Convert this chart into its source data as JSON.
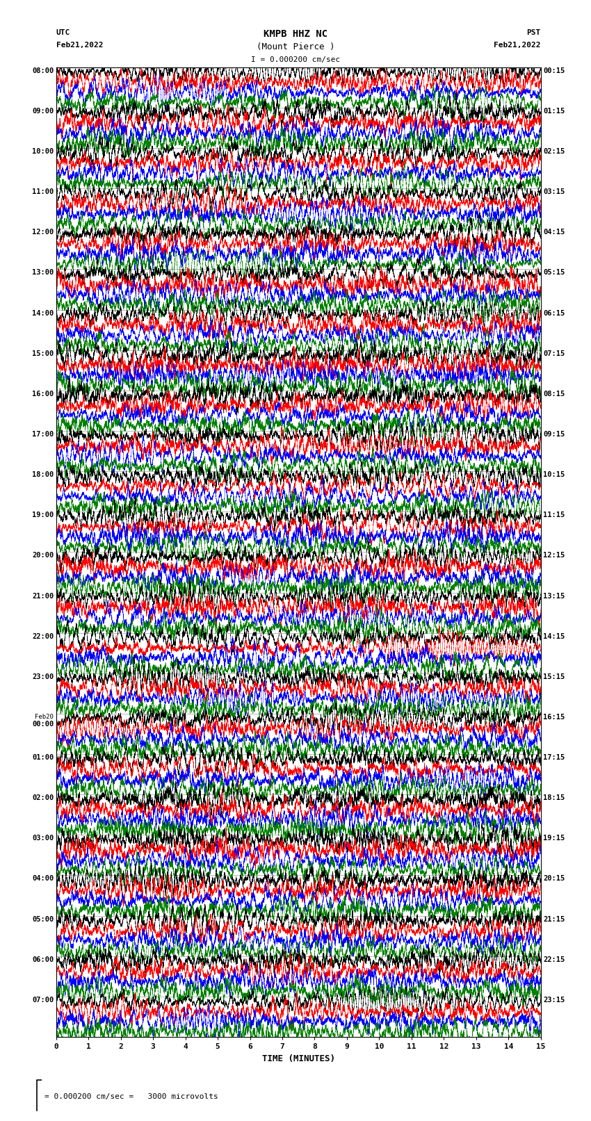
{
  "title_line1": "KMPB HHZ NC",
  "title_line2": "(Mount Pierce )",
  "title_line3": "I = 0.000200 cm/sec",
  "label_utc": "UTC",
  "label_pst": "PST",
  "date_left": "Feb21,2022",
  "date_right": "Feb21,2022",
  "xlabel": "TIME (MINUTES)",
  "scale_label": "= 0.000200 cm/sec =   3000 microvolts",
  "left_times": [
    "08:00",
    "09:00",
    "10:00",
    "11:00",
    "12:00",
    "13:00",
    "14:00",
    "15:00",
    "16:00",
    "17:00",
    "18:00",
    "19:00",
    "20:00",
    "21:00",
    "22:00",
    "23:00",
    "Feb20\n00:00",
    "01:00",
    "02:00",
    "03:00",
    "04:00",
    "05:00",
    "06:00",
    "07:00"
  ],
  "right_times": [
    "00:15",
    "01:15",
    "02:15",
    "03:15",
    "04:15",
    "05:15",
    "06:15",
    "07:15",
    "08:15",
    "09:15",
    "10:15",
    "11:15",
    "12:15",
    "13:15",
    "14:15",
    "15:15",
    "16:15",
    "17:15",
    "18:15",
    "19:15",
    "20:15",
    "21:15",
    "22:15",
    "23:15"
  ],
  "n_rows": 24,
  "n_cols": 4,
  "colors": [
    "black",
    "red",
    "blue",
    "green"
  ],
  "bg_color": "white",
  "plot_bg": "white",
  "x_ticks": [
    0,
    1,
    2,
    3,
    4,
    5,
    6,
    7,
    8,
    9,
    10,
    11,
    12,
    13,
    14,
    15
  ],
  "x_min": 0,
  "x_max": 15,
  "fig_width": 8.5,
  "fig_height": 16.13,
  "dpi": 100
}
